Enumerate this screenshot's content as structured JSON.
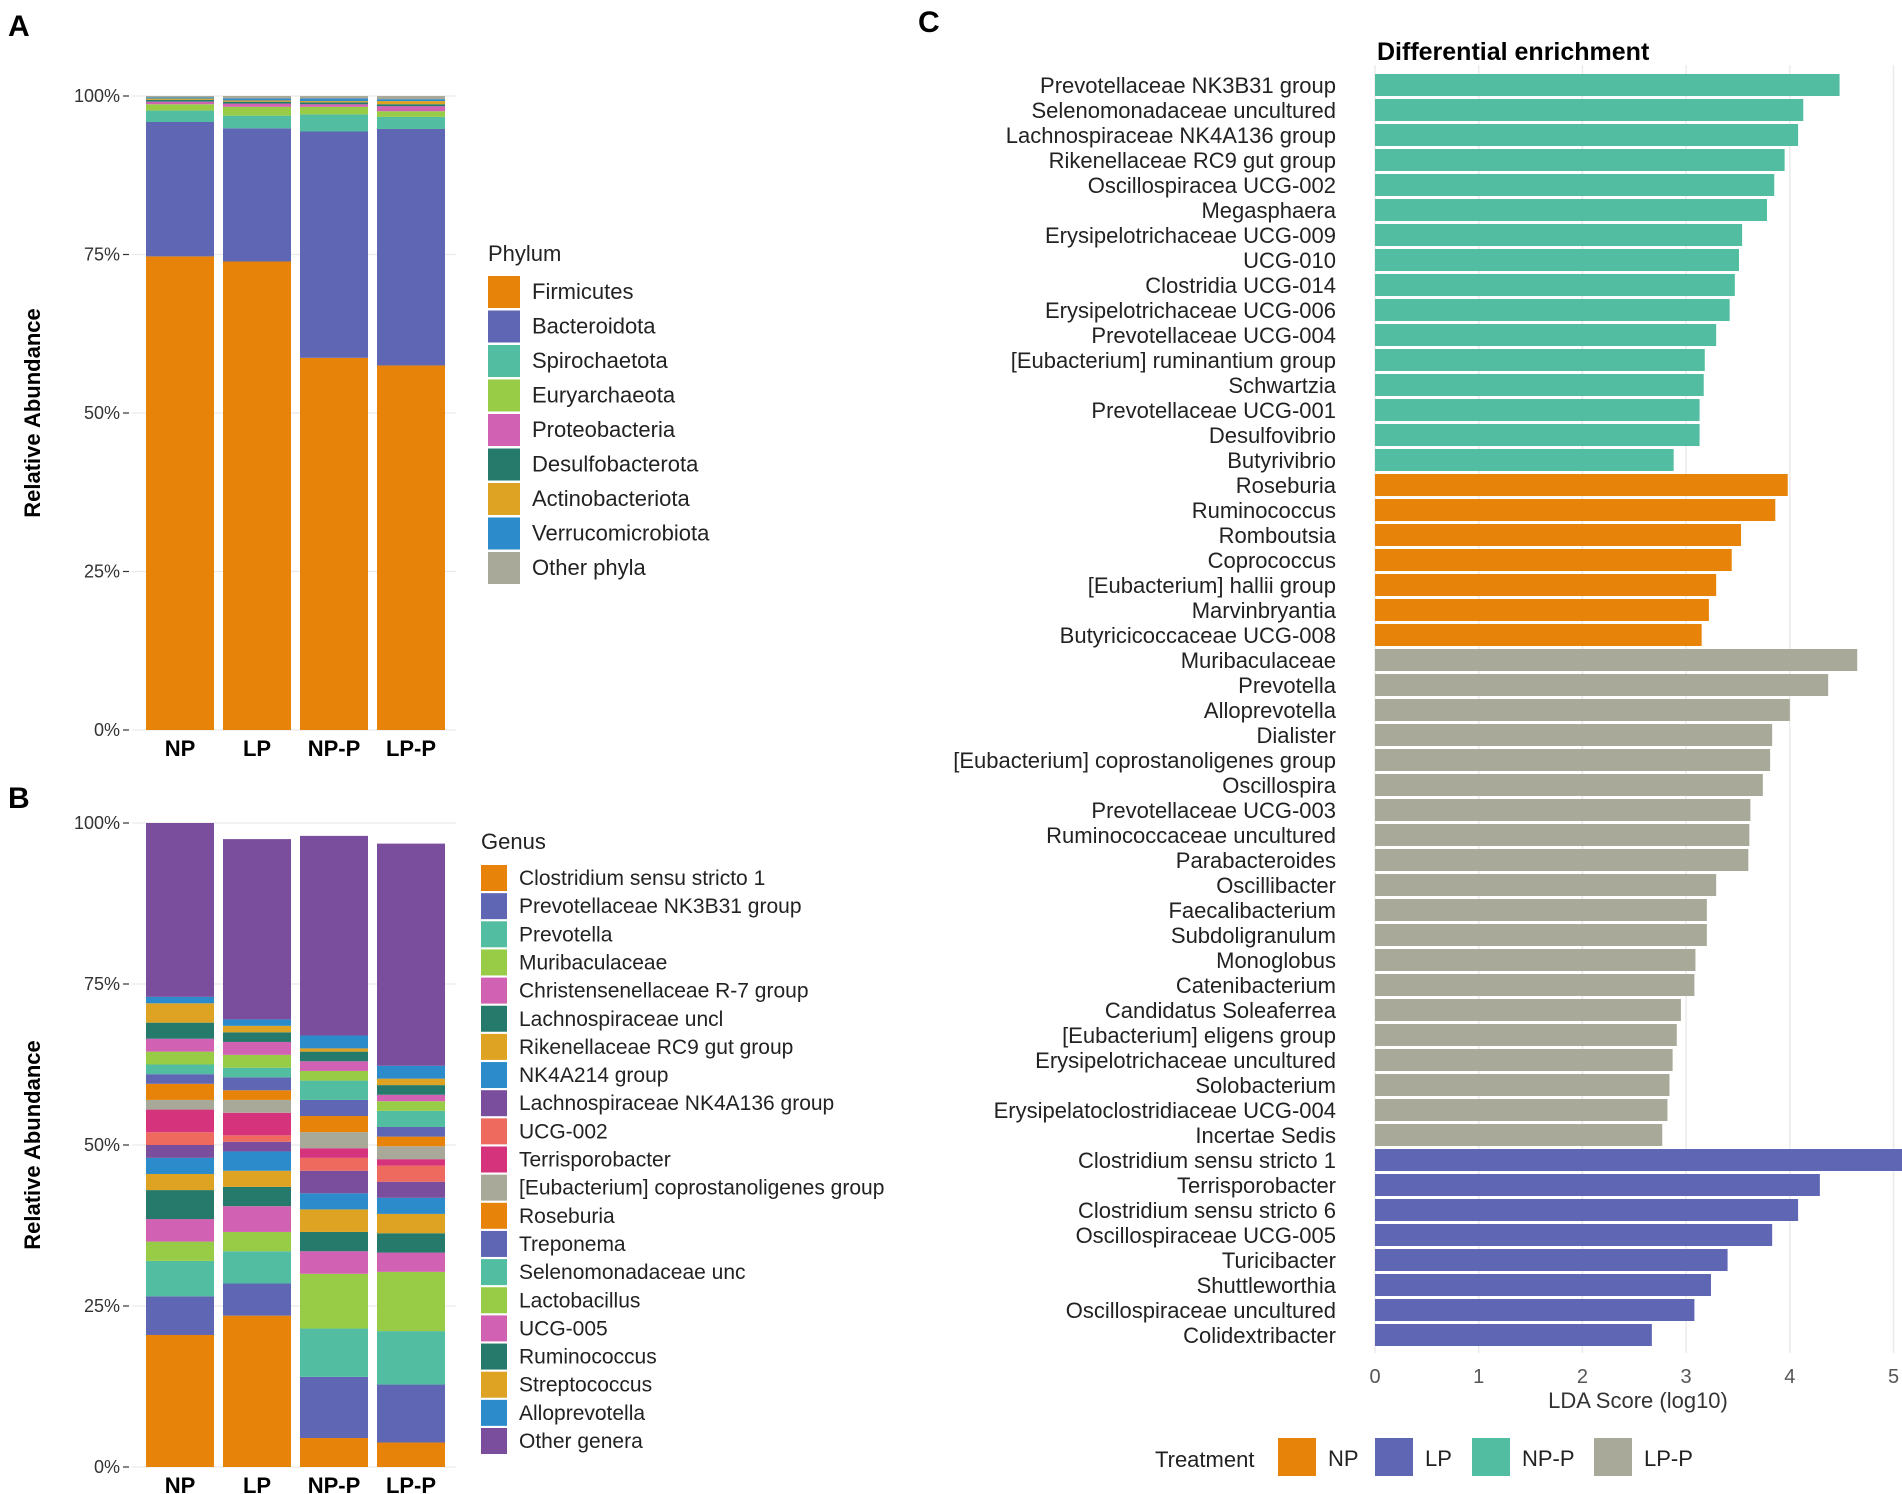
{
  "chart_data": [
    {
      "panel": "A",
      "type": "bar",
      "stacked": true,
      "ylabel": "Relative Abundance",
      "ytick_labels": [
        "0%",
        "25%",
        "50%",
        "75%",
        "100%"
      ],
      "ylim": [
        0,
        100
      ],
      "categories": [
        "NP",
        "LP",
        "NP-P",
        "LP-P"
      ],
      "legend_title": "Phylum",
      "series": [
        {
          "name": "Firmicutes",
          "color": "#E8830A",
          "values": [
            74.7,
            73.9,
            58.7,
            57.5
          ]
        },
        {
          "name": "Bacteroidota",
          "color": "#5F67B4",
          "values": [
            21.2,
            21.0,
            35.7,
            37.3
          ]
        },
        {
          "name": "Spirochaetota",
          "color": "#52BDA0",
          "values": [
            1.8,
            2.0,
            2.7,
            1.9
          ]
        },
        {
          "name": "Euryarchaeota",
          "color": "#98CC47",
          "values": [
            1.0,
            1.4,
            1.2,
            0.9
          ]
        },
        {
          "name": "Proteobacteria",
          "color": "#D161B2",
          "values": [
            0.4,
            0.5,
            0.4,
            0.8
          ]
        },
        {
          "name": "Desulfobacterota",
          "color": "#257A6C",
          "values": [
            0.3,
            0.3,
            0.3,
            0.3
          ]
        },
        {
          "name": "Actinobacteriota",
          "color": "#DEA322",
          "values": [
            0.2,
            0.2,
            0.2,
            0.5
          ]
        },
        {
          "name": "Verrucomicrobiota",
          "color": "#2C8BCA",
          "values": [
            0.2,
            0.3,
            0.4,
            0.3
          ]
        },
        {
          "name": "Other phyla",
          "color": "#A8A999",
          "values": [
            0.2,
            0.4,
            0.4,
            0.5
          ]
        }
      ]
    },
    {
      "panel": "B",
      "type": "bar",
      "stacked": true,
      "ylabel": "Relative Abundance",
      "ytick_labels": [
        "0%",
        "25%",
        "50%",
        "75%",
        "100%"
      ],
      "ylim": [
        0,
        100
      ],
      "categories": [
        "NP",
        "LP",
        "NP-P",
        "LP-P"
      ],
      "legend_title": "Genus",
      "series": [
        {
          "name": "Clostridium sensu stricto 1",
          "color": "#E8830A",
          "values": [
            20.5,
            23.5,
            4.5,
            3.8
          ]
        },
        {
          "name": "Prevotellaceae NK3B31 group",
          "color": "#5F67B4",
          "values": [
            6.0,
            5.0,
            9.5,
            9.0
          ]
        },
        {
          "name": "Prevotella",
          "color": "#52BDA0",
          "values": [
            5.5,
            5.0,
            7.5,
            8.3
          ]
        },
        {
          "name": "Muribaculaceae",
          "color": "#98CC47",
          "values": [
            3.0,
            3.0,
            8.5,
            9.2
          ]
        },
        {
          "name": "Christensenellaceae R-7 group",
          "color": "#D161B2",
          "values": [
            3.5,
            4.0,
            3.5,
            3.0
          ]
        },
        {
          "name": "Lachnospiraceae uncl",
          "color": "#257A6C",
          "values": [
            4.5,
            3.0,
            3.0,
            3.0
          ]
        },
        {
          "name": "Rikenellaceae RC9 gut group",
          "color": "#DEA322",
          "values": [
            2.5,
            2.5,
            3.5,
            3.0
          ]
        },
        {
          "name": "NK4A214 group",
          "color": "#2C8BCA",
          "values": [
            2.5,
            3.0,
            2.5,
            2.5
          ]
        },
        {
          "name": "Lachnospiraceae NK4A136 group",
          "color": "#7A4E9C",
          "values": [
            2.0,
            1.5,
            3.5,
            2.5
          ]
        },
        {
          "name": "UCG-002",
          "color": "#EE6A5E",
          "values": [
            2.0,
            1.0,
            2.0,
            2.5
          ]
        },
        {
          "name": "Terrisporobacter",
          "color": "#D6337D",
          "values": [
            3.5,
            3.5,
            1.5,
            1.0
          ]
        },
        {
          "name": "[Eubacterium] coprostanoligenes group",
          "color": "#A8A999",
          "values": [
            1.5,
            2.0,
            2.5,
            2.0
          ]
        },
        {
          "name": "Roseburia",
          "color": "#E8830A",
          "values": [
            2.5,
            1.5,
            2.5,
            1.5
          ]
        },
        {
          "name": "Treponema",
          "color": "#5F67B4",
          "values": [
            1.5,
            2.0,
            2.5,
            1.5
          ]
        },
        {
          "name": "Selenomonadaceae unc",
          "color": "#52BDA0",
          "values": [
            1.5,
            1.5,
            3.0,
            2.5
          ]
        },
        {
          "name": "Lactobacillus",
          "color": "#98CC47",
          "values": [
            2.0,
            2.0,
            1.5,
            1.5
          ]
        },
        {
          "name": "UCG-005",
          "color": "#D161B2",
          "values": [
            2.0,
            2.0,
            1.5,
            1.0
          ]
        },
        {
          "name": "Ruminococcus",
          "color": "#257A6C",
          "values": [
            2.5,
            1.5,
            1.5,
            1.5
          ]
        },
        {
          "name": "Streptococcus",
          "color": "#DEA322",
          "values": [
            3.0,
            1.0,
            0.5,
            1.0
          ]
        },
        {
          "name": "Alloprevotella",
          "color": "#2C8BCA",
          "values": [
            1.0,
            1.0,
            2.0,
            2.0
          ]
        },
        {
          "name": "Other genera",
          "color": "#7A4E9C",
          "values": [
            27.0,
            28.0,
            31.0,
            34.5
          ]
        }
      ]
    },
    {
      "panel": "C",
      "type": "bar",
      "orientation": "horizontal",
      "title": "Differential enrichment",
      "xlabel": "LDA Score (log10)",
      "xlim": [
        0,
        5.1
      ],
      "xticks": [
        0,
        1,
        2,
        3,
        4,
        5
      ],
      "legend_title": "Treatment",
      "groups": [
        {
          "name": "NP",
          "color": "#E8830A"
        },
        {
          "name": "LP",
          "color": "#5F67B4"
        },
        {
          "name": "NP-P",
          "color": "#52BDA0"
        },
        {
          "name": "LP-P",
          "color": "#A8A999"
        }
      ],
      "bars": [
        {
          "label": "Prevotellaceae NK3B31 group",
          "group": "NP-P",
          "value": 4.48
        },
        {
          "label": "Selenomonadaceae uncultured",
          "group": "NP-P",
          "value": 4.13
        },
        {
          "label": "Lachnospiraceae NK4A136 group",
          "group": "NP-P",
          "value": 4.08
        },
        {
          "label": "Rikenellaceae RC9 gut group",
          "group": "NP-P",
          "value": 3.95
        },
        {
          "label": "Oscillospiracea UCG-002",
          "group": "NP-P",
          "value": 3.85
        },
        {
          "label": "Megasphaera",
          "group": "NP-P",
          "value": 3.78
        },
        {
          "label": "Erysipelotrichaceae UCG-009",
          "group": "NP-P",
          "value": 3.54
        },
        {
          "label": "UCG-010",
          "group": "NP-P",
          "value": 3.51
        },
        {
          "label": "Clostridia UCG-014",
          "group": "NP-P",
          "value": 3.47
        },
        {
          "label": "Erysipelotrichaceae UCG-006",
          "group": "NP-P",
          "value": 3.42
        },
        {
          "label": "Prevotellaceae UCG-004",
          "group": "NP-P",
          "value": 3.29
        },
        {
          "label": "[Eubacterium] ruminantium group",
          "group": "NP-P",
          "value": 3.18
        },
        {
          "label": "Schwartzia",
          "group": "NP-P",
          "value": 3.17
        },
        {
          "label": "Prevotellaceae UCG-001",
          "group": "NP-P",
          "value": 3.13
        },
        {
          "label": "Desulfovibrio",
          "group": "NP-P",
          "value": 3.13
        },
        {
          "label": "Butyrivibrio",
          "group": "NP-P",
          "value": 2.88
        },
        {
          "label": "Roseburia",
          "group": "NP",
          "value": 3.98
        },
        {
          "label": "Ruminococcus",
          "group": "NP",
          "value": 3.86
        },
        {
          "label": "Romboutsia",
          "group": "NP",
          "value": 3.53
        },
        {
          "label": "Coprococcus",
          "group": "NP",
          "value": 3.44
        },
        {
          "label": "[Eubacterium] hallii group",
          "group": "NP",
          "value": 3.29
        },
        {
          "label": "Marvinbryantia",
          "group": "NP",
          "value": 3.22
        },
        {
          "label": "Butyricicoccaceae UCG-008",
          "group": "NP",
          "value": 3.15
        },
        {
          "label": "Muribaculaceae",
          "group": "LP-P",
          "value": 4.65
        },
        {
          "label": "Prevotella",
          "group": "LP-P",
          "value": 4.37
        },
        {
          "label": "Alloprevotella",
          "group": "LP-P",
          "value": 4.0
        },
        {
          "label": "Dialister",
          "group": "LP-P",
          "value": 3.83
        },
        {
          "label": "[Eubacterium] coprostanoligenes group",
          "group": "LP-P",
          "value": 3.81
        },
        {
          "label": "Oscillospira",
          "group": "LP-P",
          "value": 3.74
        },
        {
          "label": "Prevotellaceae UCG-003",
          "group": "LP-P",
          "value": 3.62
        },
        {
          "label": "Ruminococcaceae uncultured",
          "group": "LP-P",
          "value": 3.61
        },
        {
          "label": "Parabacteroides",
          "group": "LP-P",
          "value": 3.6
        },
        {
          "label": "Oscillibacter",
          "group": "LP-P",
          "value": 3.29
        },
        {
          "label": "Faecalibacterium",
          "group": "LP-P",
          "value": 3.2
        },
        {
          "label": "Subdoligranulum",
          "group": "LP-P",
          "value": 3.2
        },
        {
          "label": "Monoglobus",
          "group": "LP-P",
          "value": 3.09
        },
        {
          "label": "Catenibacterium",
          "group": "LP-P",
          "value": 3.08
        },
        {
          "label": "Candidatus Soleaferrea",
          "group": "LP-P",
          "value": 2.95
        },
        {
          "label": "[Eubacterium] eligens group",
          "group": "LP-P",
          "value": 2.91
        },
        {
          "label": "Erysipelotrichaceae uncultured",
          "group": "LP-P",
          "value": 2.87
        },
        {
          "label": "Solobacterium",
          "group": "LP-P",
          "value": 2.84
        },
        {
          "label": "Erysipelatoclostridiaceae UCG-004",
          "group": "LP-P",
          "value": 2.82
        },
        {
          "label": "Incertae Sedis",
          "group": "LP-P",
          "value": 2.77
        },
        {
          "label": "Clostridium sensu stricto 1",
          "group": "LP",
          "value": 5.1
        },
        {
          "label": "Terrisporobacter",
          "group": "LP",
          "value": 4.29
        },
        {
          "label": "Clostridium sensu stricto 6",
          "group": "LP",
          "value": 4.08
        },
        {
          "label": "Oscillospiraceae UCG-005",
          "group": "LP",
          "value": 3.83
        },
        {
          "label": "Turicibacter",
          "group": "LP",
          "value": 3.4
        },
        {
          "label": "Shuttleworthia",
          "group": "LP",
          "value": 3.24
        },
        {
          "label": "Oscillospiraceae uncultured",
          "group": "LP",
          "value": 3.08
        },
        {
          "label": "Colidextribacter",
          "group": "LP",
          "value": 2.67
        }
      ]
    }
  ],
  "panels": {
    "a_letter": "A",
    "b_letter": "B",
    "c_letter": "C"
  }
}
